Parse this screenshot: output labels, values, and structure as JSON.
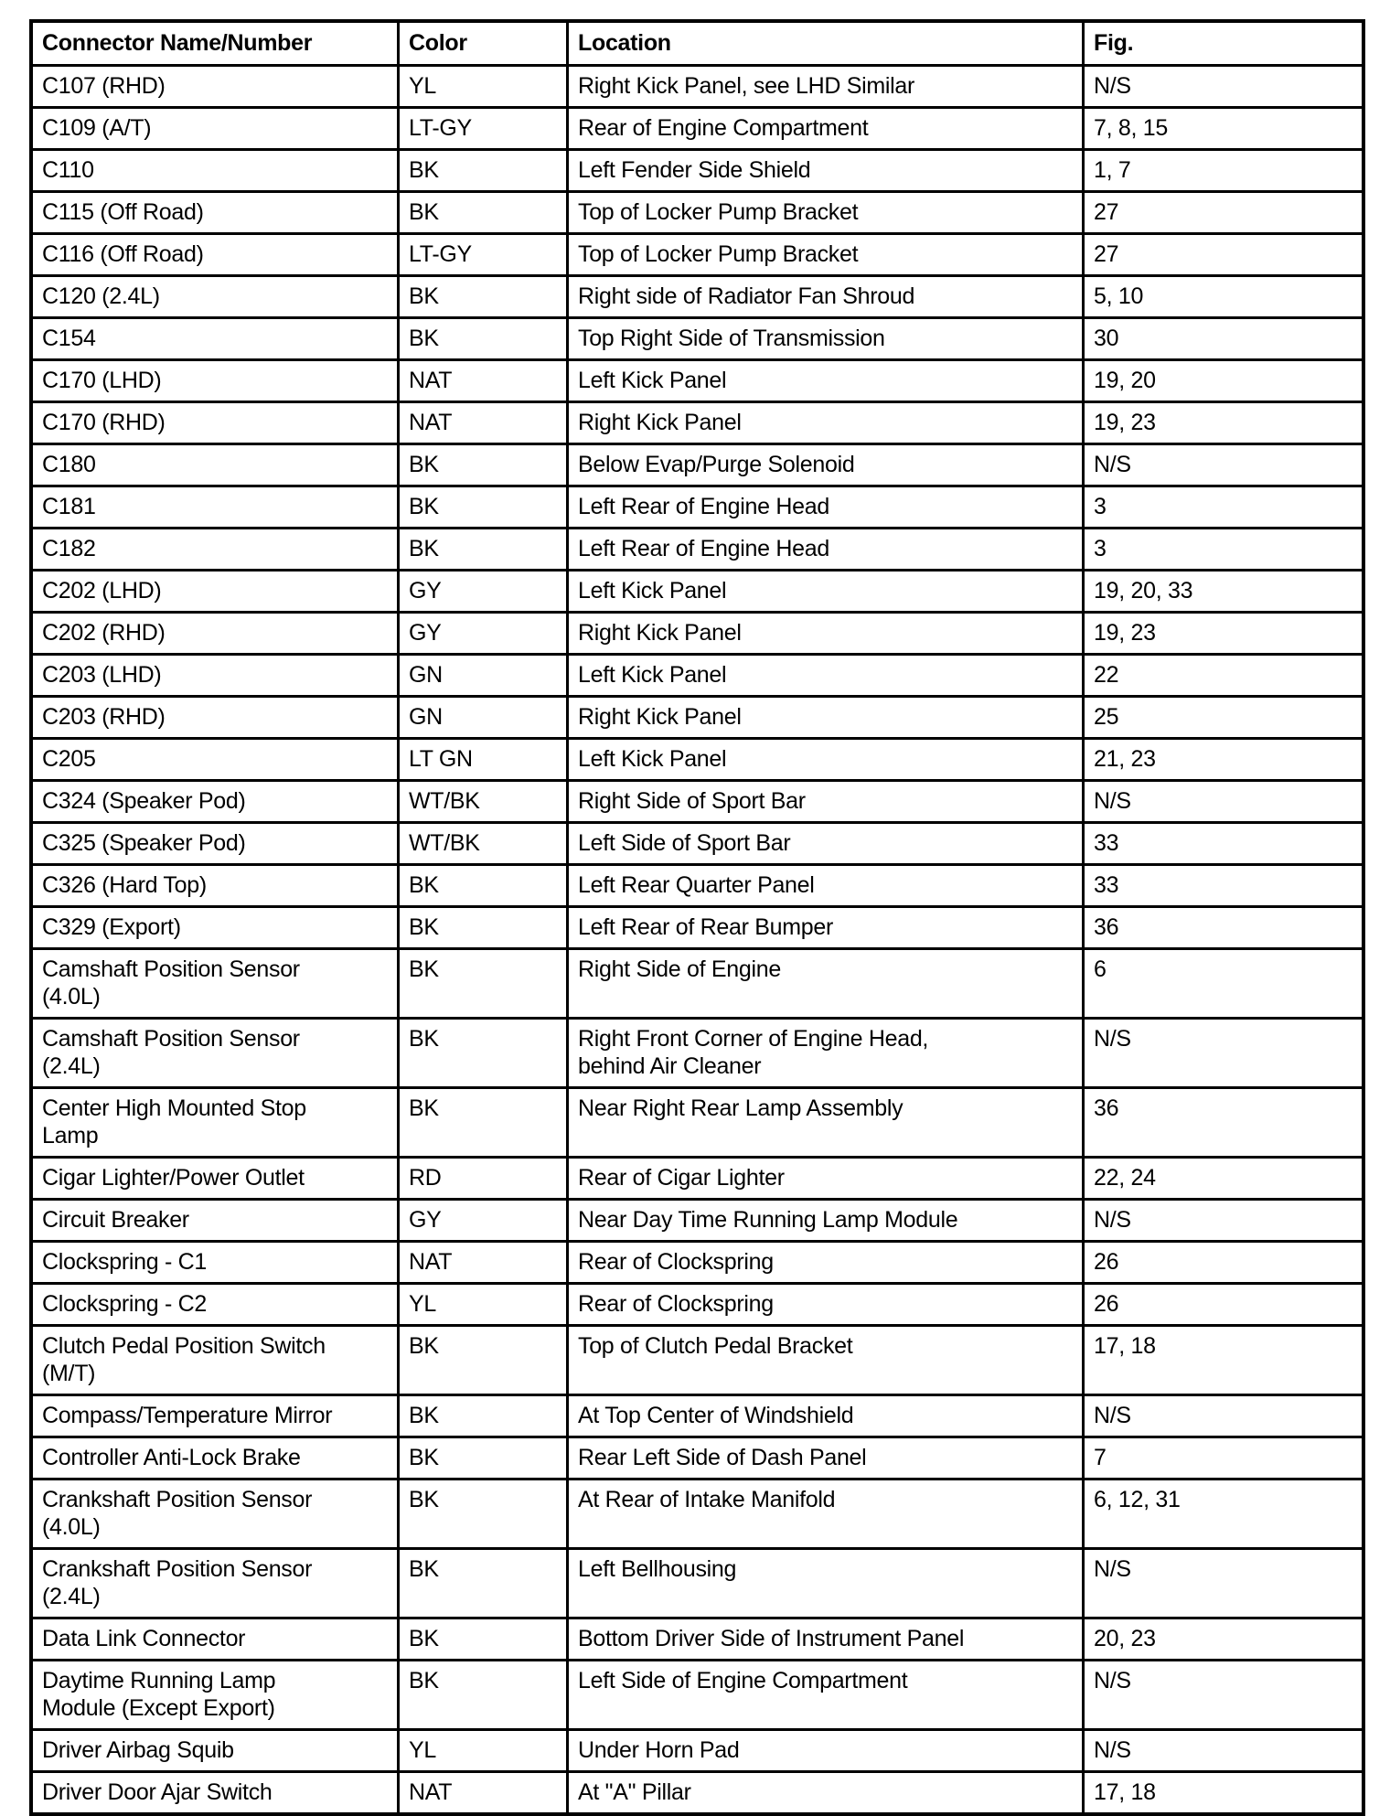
{
  "headers": [
    "Connector Name/Number",
    "Color",
    "Location",
    "Fig."
  ],
  "rows": [
    [
      "C107 (RHD)",
      "YL",
      "Right Kick Panel, see LHD Similar",
      "N/S"
    ],
    [
      "C109 (A/T)",
      "LT-GY",
      "Rear of Engine Compartment",
      "7, 8, 15"
    ],
    [
      "C110",
      "BK",
      "Left Fender Side Shield",
      "1, 7"
    ],
    [
      "C115 (Off Road)",
      "BK",
      "Top of Locker Pump Bracket",
      "27"
    ],
    [
      "C116 (Off Road)",
      "LT-GY",
      "Top of Locker Pump Bracket",
      "27"
    ],
    [
      "C120 (2.4L)",
      "BK",
      "Right side of Radiator Fan Shroud",
      "5, 10"
    ],
    [
      "C154",
      "BK",
      "Top Right Side of Transmission",
      "30"
    ],
    [
      "C170 (LHD)",
      "NAT",
      "Left Kick Panel",
      "19, 20"
    ],
    [
      "C170 (RHD)",
      "NAT",
      "Right Kick Panel",
      "19, 23"
    ],
    [
      "C180",
      "BK",
      "Below Evap/Purge Solenoid",
      "N/S"
    ],
    [
      "C181",
      "BK",
      "Left Rear of Engine Head",
      "3"
    ],
    [
      "C182",
      "BK",
      "Left Rear of Engine Head",
      "3"
    ],
    [
      "C202 (LHD)",
      "GY",
      "Left Kick Panel",
      "19, 20, 33"
    ],
    [
      "C202 (RHD)",
      "GY",
      "Right Kick Panel",
      "19, 23"
    ],
    [
      "C203 (LHD)",
      "GN",
      "Left Kick Panel",
      "22"
    ],
    [
      "C203 (RHD)",
      "GN",
      "Right Kick Panel",
      "25"
    ],
    [
      "C205",
      "LT GN",
      "Left Kick Panel",
      "21, 23"
    ],
    [
      "C324 (Speaker Pod)",
      "WT/BK",
      "Right Side of Sport Bar",
      "N/S"
    ],
    [
      "C325 (Speaker Pod)",
      "WT/BK",
      "Left Side of Sport Bar",
      "33"
    ],
    [
      "C326 (Hard Top)",
      "BK",
      "Left Rear Quarter Panel",
      "33"
    ],
    [
      "C329 (Export)",
      "BK",
      "Left Rear of Rear Bumper",
      "36"
    ],
    [
      "Camshaft Position Sensor\n(4.0L)",
      "BK",
      "Right Side of Engine",
      "6"
    ],
    [
      "Camshaft Position Sensor\n(2.4L)",
      "BK",
      "Right Front Corner of Engine Head,\nbehind Air Cleaner",
      "N/S"
    ],
    [
      "Center High Mounted Stop\nLamp",
      "BK",
      "Near Right Rear Lamp Assembly",
      "36"
    ],
    [
      "Cigar Lighter/Power Outlet",
      "RD",
      "Rear of Cigar Lighter",
      "22, 24"
    ],
    [
      "Circuit Breaker",
      "GY",
      "Near Day Time Running Lamp Module",
      "N/S"
    ],
    [
      "Clockspring - C1",
      "NAT",
      "Rear of Clockspring",
      "26"
    ],
    [
      "Clockspring - C2",
      "YL",
      "Rear of Clockspring",
      "26"
    ],
    [
      "Clutch Pedal Position Switch\n(M/T)",
      "BK",
      "Top of Clutch Pedal Bracket",
      "17, 18"
    ],
    [
      "Compass/Temperature Mirror",
      "BK",
      "At Top Center of Windshield",
      "N/S"
    ],
    [
      "Controller Anti-Lock Brake",
      "BK",
      "Rear Left Side of Dash Panel",
      "7"
    ],
    [
      "Crankshaft Position Sensor\n(4.0L)",
      "BK",
      "At Rear of Intake Manifold",
      "6, 12, 31"
    ],
    [
      "Crankshaft Position Sensor\n(2.4L)",
      "BK",
      "Left Bellhousing",
      "N/S"
    ],
    [
      "Data Link Connector",
      "BK",
      "Bottom Driver Side of Instrument Panel",
      "20, 23"
    ],
    [
      "Daytime Running Lamp\nModule (Except Export)",
      "BK",
      "Left Side of Engine Compartment",
      "N/S"
    ],
    [
      "Driver Airbag Squib",
      "YL",
      "Under Horn Pad",
      "N/S"
    ],
    [
      "Driver Door Ajar Switch",
      "NAT",
      "At \"A\" Pillar",
      "17, 18"
    ]
  ]
}
